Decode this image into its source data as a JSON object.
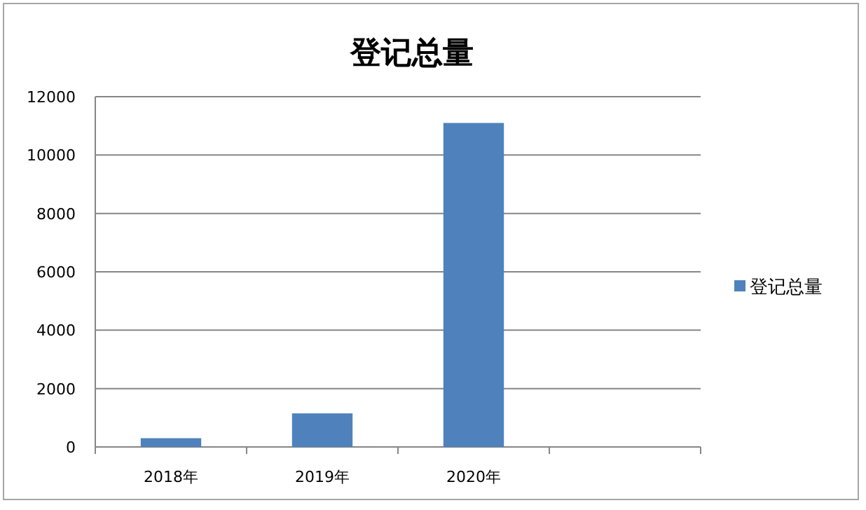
{
  "chart_data": {
    "type": "bar",
    "title": "登记总量",
    "categories": [
      "2018年",
      "2019年",
      "2020年",
      null
    ],
    "series": [
      {
        "name": "登记总量",
        "color": "#4f81bd",
        "values": [
          300,
          1150,
          11100,
          null
        ]
      }
    ],
    "ylim": [
      0,
      12000
    ],
    "yticks": [
      0,
      2000,
      4000,
      6000,
      8000,
      10000,
      12000
    ],
    "grid": "y",
    "legend": "right"
  }
}
